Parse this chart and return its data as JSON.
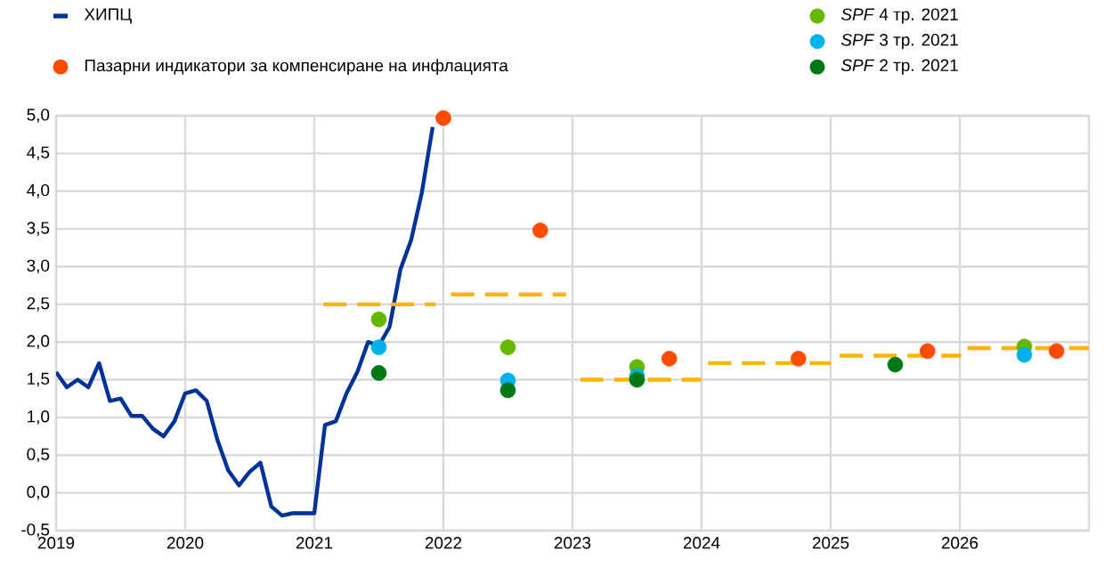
{
  "chart_data": {
    "type": "line",
    "xlim": [
      2019,
      2027
    ],
    "xticks": [
      2019,
      2020,
      2021,
      2022,
      2023,
      2024,
      2025,
      2026
    ],
    "ylim": [
      -0.5,
      5.0
    ],
    "yticks": [
      {
        "value": -0.5,
        "label": "-0,5"
      },
      {
        "value": 0.0,
        "label": "0,0"
      },
      {
        "value": 0.5,
        "label": "0,5"
      },
      {
        "value": 1.0,
        "label": "1,0"
      },
      {
        "value": 1.5,
        "label": "1,5"
      },
      {
        "value": 2.0,
        "label": "2,0"
      },
      {
        "value": 2.5,
        "label": "2,5"
      },
      {
        "value": 3.0,
        "label": "3,0"
      },
      {
        "value": 3.5,
        "label": "3,5"
      },
      {
        "value": 4.0,
        "label": "4,0"
      },
      {
        "value": 4.5,
        "label": "4,5"
      },
      {
        "value": 5.0,
        "label": "5,0"
      }
    ],
    "grid": true,
    "legend": "top",
    "series": [
      {
        "name": "ХИПЦ",
        "color": "#003299",
        "line_style": "solid",
        "marker": "none",
        "x": [
          2019.0,
          2019.083,
          2019.167,
          2019.25,
          2019.333,
          2019.417,
          2019.5,
          2019.583,
          2019.667,
          2019.75,
          2019.833,
          2019.917,
          2020.0,
          2020.083,
          2020.167,
          2020.25,
          2020.333,
          2020.417,
          2020.5,
          2020.583,
          2020.667,
          2020.75,
          2020.833,
          2020.917,
          2021.0,
          2021.083,
          2021.167,
          2021.25,
          2021.333,
          2021.417,
          2021.5,
          2021.583,
          2021.667,
          2021.75,
          2021.833,
          2021.917
        ],
        "values": [
          1.6,
          1.4,
          1.5,
          1.4,
          1.72,
          1.22,
          1.25,
          1.02,
          1.02,
          0.85,
          0.75,
          0.95,
          1.32,
          1.36,
          1.22,
          0.7,
          0.3,
          0.1,
          0.28,
          0.4,
          -0.18,
          -0.3,
          -0.27,
          -0.27,
          -0.27,
          0.9,
          0.95,
          1.32,
          1.6,
          2.0,
          1.95,
          2.2,
          2.96,
          3.35,
          3.98,
          4.85
        ]
      },
      {
        "color": "#ffb400",
        "line_style": "dashed",
        "marker": "none",
        "x": [
          2021.07,
          2021.94,
          2022.0,
          2022.06,
          2022.95,
          2023.0,
          2023.06,
          2024.0,
          2024.02,
          2024.05,
          2025.0,
          2025.03,
          2025.07,
          2026.01,
          2026.03,
          2026.06,
          2027.0
        ],
        "values": [
          2.5,
          2.5,
          null,
          2.63,
          2.63,
          null,
          1.5,
          1.5,
          null,
          1.72,
          1.72,
          null,
          1.82,
          1.82,
          null,
          1.92,
          1.92
        ]
      },
      {
        "name": "Пазарни индикатори за компенсиране на инфлацията",
        "type": "scatter",
        "color": "#ff4b00",
        "marker": "circle",
        "x": [
          2022.0,
          2022.75,
          2023.75,
          2024.75,
          2025.75,
          2026.75
        ],
        "values": [
          4.97,
          3.48,
          1.78,
          1.78,
          1.88,
          1.88
        ]
      },
      {
        "name": "*SPF* 4 тр. 2021",
        "type": "scatter",
        "color": "#65b800",
        "marker": "circle",
        "x": [
          2021.5,
          2022.5,
          2023.5,
          2026.5
        ],
        "values": [
          2.3,
          1.93,
          1.67,
          1.94
        ]
      },
      {
        "name": "*SPF* 3 тр. 2021",
        "type": "scatter",
        "color": "#00b1ea",
        "marker": "circle",
        "x": [
          2021.5,
          2022.5,
          2023.5,
          2026.5
        ],
        "values": [
          1.93,
          1.49,
          1.55,
          1.83
        ]
      },
      {
        "name": "*SPF* 2 тр. 2021",
        "type": "scatter",
        "color": "#007816",
        "marker": "circle",
        "x": [
          2021.5,
          2022.5,
          2023.5,
          2025.5
        ],
        "values": [
          1.59,
          1.36,
          1.5,
          1.7
        ]
      }
    ]
  }
}
